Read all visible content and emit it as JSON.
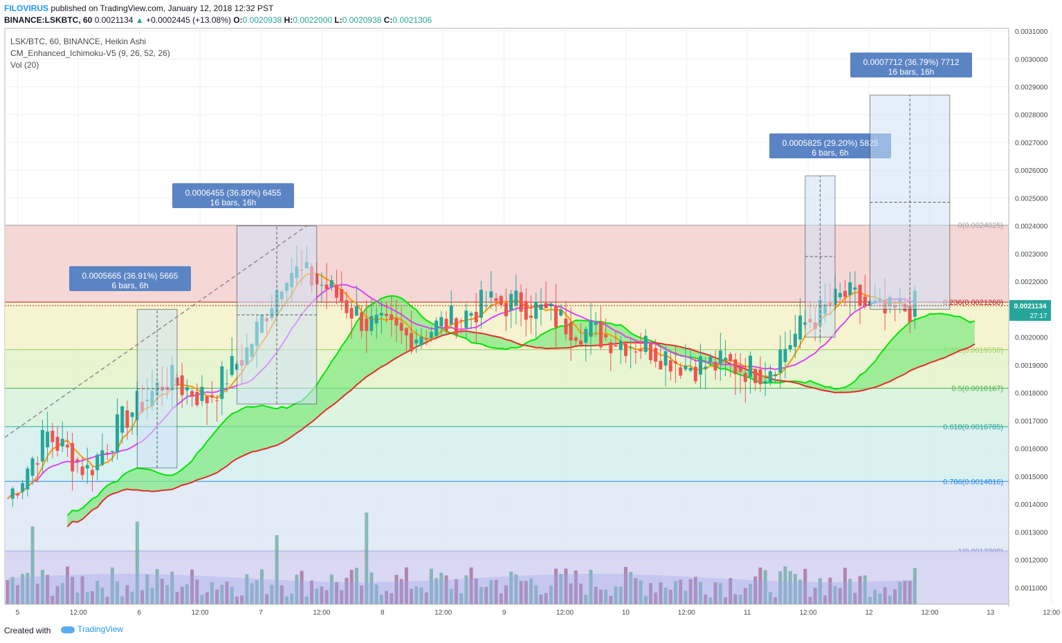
{
  "header": {
    "author": "FILOVIRUS",
    "published": "published on TradingView.com, January 12, 2018 12:32 PST",
    "symbol_line": "BINANCE:LSKBTC, 60",
    "last": "0.0021134",
    "change": "+0.0002445 (+13.08%)",
    "o_label": "O:",
    "o": "0.0020938",
    "h_label": "H:",
    "h": "0.0022000",
    "l_label": "L:",
    "l": "0.0020938",
    "c_label": "C:",
    "c": "0.0021306"
  },
  "legend": {
    "line1": "LSK/BTC, 60, BINANCE, Heikin Ashi",
    "line2": "CM_Enhanced_Ichimoku-V5 (9, 26, 52, 26)",
    "line3": "Vol (20)"
  },
  "footer": {
    "created_with": "Created with",
    "brand": "TradingView"
  },
  "colors": {
    "up_candle": "#26a69a",
    "down_candle": "#ef5350",
    "tenkan": "#ff9800",
    "kijun": "#e040fb",
    "span_a": "#00e600",
    "span_b": "#e52b2b",
    "cloud_bull": "#7ee87e",
    "cloud_bear": "#e87a6a",
    "callout_bg": "#5b84c4"
  },
  "price_badge": {
    "price": "0.0021134",
    "countdown": "27:17"
  },
  "chart_data": {
    "type": "candlestick",
    "subtype": "Heikin Ashi",
    "interval": "60",
    "y_axis_ticks": [
      "0.0031000",
      "0.0030000",
      "0.0029000",
      "0.0028000",
      "0.0027000",
      "0.0026000",
      "0.0025000",
      "0.0024000",
      "0.0023000",
      "0.0022000",
      "0.0021000",
      "0.0020000",
      "0.0019000",
      "0.0018000",
      "0.0017000",
      "0.0016000",
      "0.0015000",
      "0.0014000",
      "0.0013000",
      "0.0012000",
      "0.0011000"
    ],
    "x_axis_ticks": [
      "5",
      "12:00",
      "6",
      "12:00",
      "7",
      "12:00",
      "8",
      "12:00",
      "9",
      "12:00",
      "10",
      "12:00",
      "11",
      "12:00",
      "12",
      "12:00",
      "13",
      "12:00"
    ],
    "ylim": [
      0.00104,
      0.00311
    ],
    "current_price": 0.0021134,
    "fib_levels": [
      {
        "label": "0(0.0024025)",
        "value": 0.0024025,
        "color": "#9e9e9e"
      },
      {
        "label": "0.236(0.0021260)",
        "value": 0.002126,
        "color": "#b71c1c"
      },
      {
        "label": "0.382(0.0019550)",
        "value": 0.001955,
        "color": "#9ccc65"
      },
      {
        "label": "0.5(0.0018167)",
        "value": 0.0018167,
        "color": "#4caf50"
      },
      {
        "label": "0.618(0.0016785)",
        "value": 0.0016785,
        "color": "#26a69a"
      },
      {
        "label": "0.786(0.0014816)",
        "value": 0.0014816,
        "color": "#1e88e5"
      },
      {
        "label": "1(0.0012309)",
        "value": 0.0012309,
        "color": "#7986cb"
      }
    ],
    "measurements": [
      {
        "text1": "0.0005665 (36.91%) 5665",
        "text2": "6 bars, 6h"
      },
      {
        "text1": "0.0006455 (36.80%) 6455",
        "text2": "16 bars, 16h"
      },
      {
        "text1": "0.0005825 (29.20%) 5825",
        "text2": "6 bars, 6h"
      },
      {
        "text1": "0.0007712 (36.79%) 7712",
        "text2": "16 bars, 16h"
      }
    ],
    "series": [
      {
        "name": "close",
        "x": [
          0,
          8,
          16,
          24,
          32,
          40,
          48,
          56,
          64,
          72,
          80,
          88,
          96,
          104,
          112,
          120,
          128,
          136,
          144,
          152,
          160,
          168,
          176,
          182
        ],
        "values": [
          0.00142,
          0.00165,
          0.00152,
          0.00172,
          0.00185,
          0.00178,
          0.00195,
          0.00225,
          0.00218,
          0.00205,
          0.002,
          0.00205,
          0.00212,
          0.00212,
          0.00205,
          0.002,
          0.00197,
          0.0019,
          0.0019,
          0.00188,
          0.00205,
          0.00215,
          0.00208,
          0.00211
        ]
      }
    ]
  }
}
